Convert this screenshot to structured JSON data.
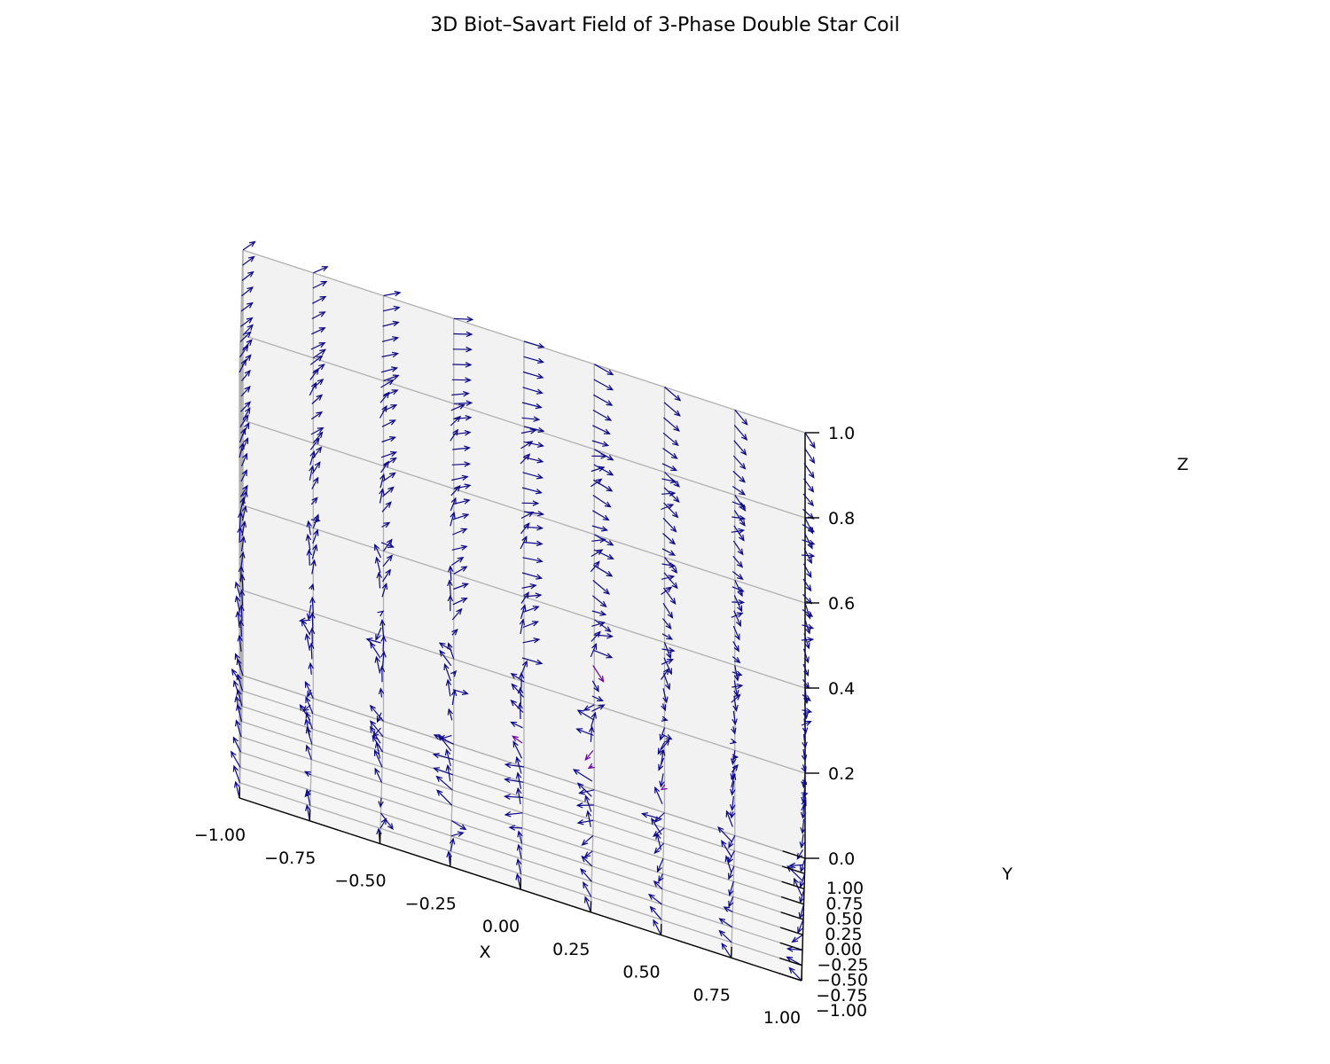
{
  "chart_data": {
    "type": "quiver3d",
    "title": "3D Biot–Savart Field of 3-Phase Double Star Coil",
    "xlabel": "X",
    "ylabel": "Y",
    "zlabel": "Z",
    "xlim": [
      -1.0,
      1.0
    ],
    "ylim": [
      -1.0,
      1.0
    ],
    "zlim": [
      0.0,
      1.0
    ],
    "x_ticks": [
      -1.0,
      -0.75,
      -0.5,
      -0.25,
      0.0,
      0.25,
      0.5,
      0.75,
      1.0
    ],
    "y_ticks": [
      -1.0,
      -0.75,
      -0.5,
      -0.25,
      0.0,
      0.25,
      0.5,
      0.75,
      1.0
    ],
    "z_ticks": [
      0.0,
      0.2,
      0.4,
      0.6,
      0.8,
      1.0
    ],
    "x_tick_labels": [
      "−1.00",
      "−0.75",
      "−0.50",
      "−0.25",
      "0.00",
      "0.25",
      "0.50",
      "0.75",
      "1.00"
    ],
    "y_tick_labels": [
      "−1.00",
      "−0.75",
      "−0.50",
      "−0.25",
      "0.00",
      "0.25",
      "0.50",
      "0.75",
      "1.00"
    ],
    "z_tick_labels": [
      "0.0",
      "0.2",
      "0.4",
      "0.6",
      "0.8",
      "1.0"
    ],
    "grid": true,
    "colormap": "plasma",
    "arrow_color": "#0d0887",
    "highlight_colors": [
      "#6a00a8",
      "#b12a90",
      "#f0f921"
    ]
  }
}
